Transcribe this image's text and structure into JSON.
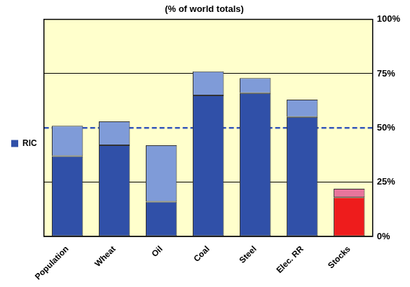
{
  "chart_data": {
    "type": "bar",
    "title": "(% of world totals)",
    "categories": [
      "Population",
      "Wheat",
      "Oil",
      "Coal",
      "Steel",
      "Elec. RR",
      "Stocks"
    ],
    "series": [
      {
        "name": "RIC",
        "color": "#3050a8",
        "colors": [
          "#3050a8",
          "#3050a8",
          "#3050a8",
          "#3050a8",
          "#3050a8",
          "#3050a8",
          "#ee1c1c"
        ],
        "values": [
          37,
          42,
          16,
          65,
          66,
          55,
          18
        ]
      },
      {
        "color": "#7f9bd8",
        "colors": [
          "#7f9bd8",
          "#7f9bd8",
          "#7f9bd8",
          "#7f9bd8",
          "#7f9bd8",
          "#7f9bd8",
          "#e8759c"
        ],
        "values": [
          14,
          11,
          26,
          11,
          7,
          8,
          4
        ]
      }
    ],
    "stacked": true,
    "ylim": [
      0,
      100
    ],
    "yticks": [
      {
        "value": 0,
        "label": "0%"
      },
      {
        "value": 25,
        "label": "25%"
      },
      {
        "value": 50,
        "label": "50%"
      },
      {
        "value": 75,
        "label": "75%"
      },
      {
        "value": 100,
        "label": "100%"
      }
    ],
    "grid": true,
    "legend": "left",
    "hlines": [
      {
        "value": 50,
        "line_style": "dashed",
        "color": "#3355bb"
      }
    ]
  }
}
